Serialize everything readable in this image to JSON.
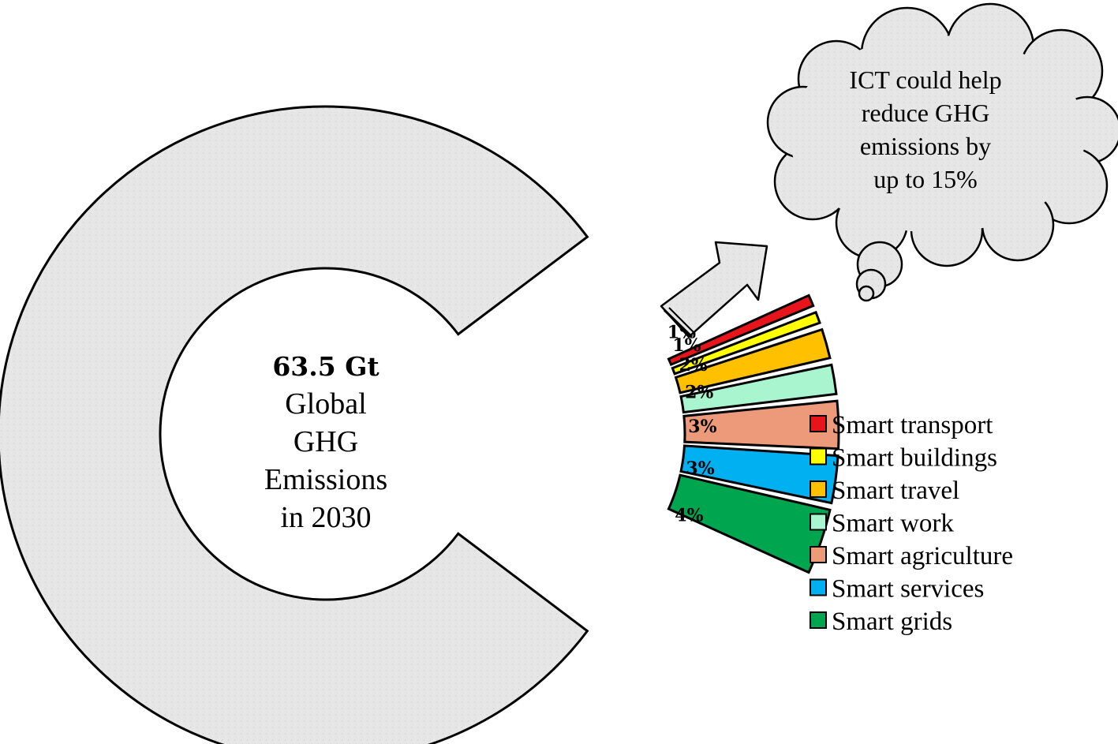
{
  "chart_data": {
    "type": "pie",
    "total_label": "63.5 Gt",
    "center_lines": [
      "Global",
      "GHG",
      "Emissions",
      "in 2030"
    ],
    "slices": [
      {
        "name": "Smart transport",
        "value": 1,
        "label": "1%",
        "color": "#e8141b"
      },
      {
        "name": "Smart buildings",
        "value": 1,
        "label": "1%",
        "color": "#ffff00"
      },
      {
        "name": "Smart travel",
        "value": 2,
        "label": "2%",
        "color": "#ffc000"
      },
      {
        "name": "Smart work",
        "value": 2,
        "label": "2%",
        "color": "#a9f5d0"
      },
      {
        "name": "Smart agriculture",
        "value": 3,
        "label": "3%",
        "color": "#ec9a7a"
      },
      {
        "name": "Smart services",
        "value": 3,
        "label": "3%",
        "color": "#00b0f0"
      },
      {
        "name": "Smart grids",
        "value": 4,
        "label": "4%",
        "color": "#00a64f"
      }
    ],
    "remainder_color": "#e6e6e6",
    "callout_lines": [
      "ICT could help",
      "reduce GHG",
      "emissions by",
      "up to 15%"
    ],
    "legend_position": "right"
  }
}
